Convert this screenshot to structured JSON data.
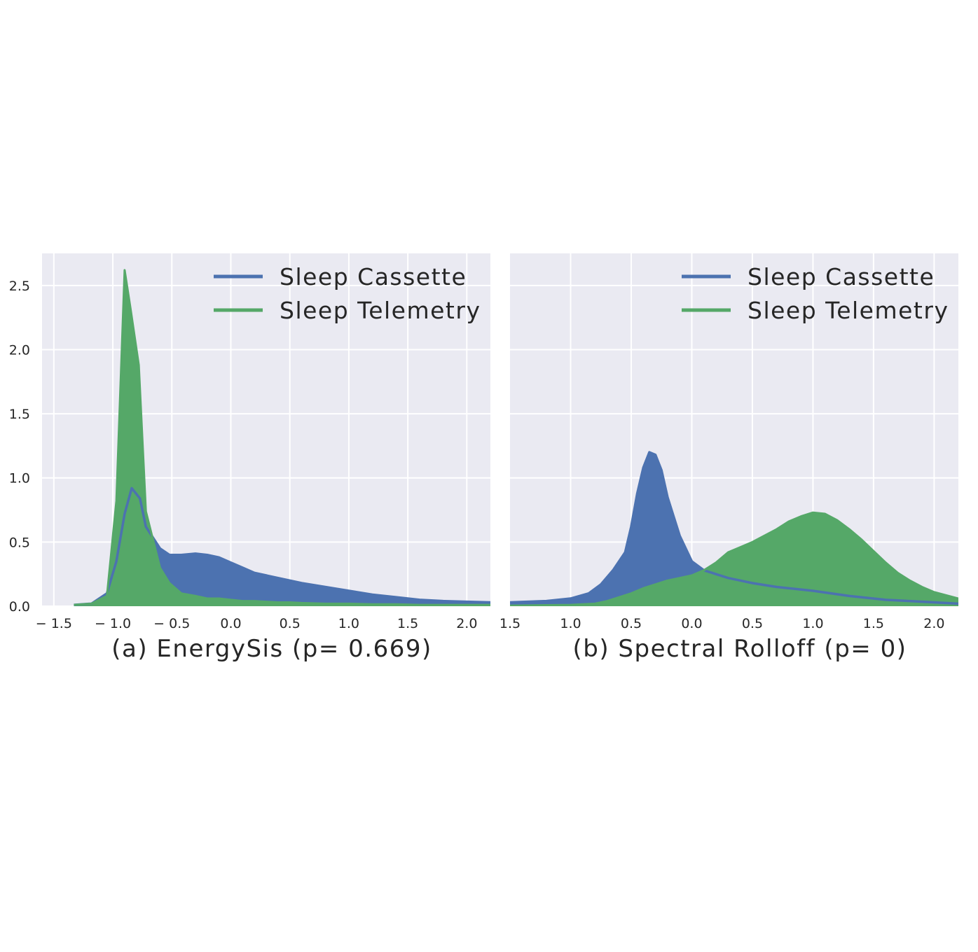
{
  "colors": {
    "cassette": "#4c72b0",
    "telemetry": "#55a868",
    "plot_bg": "#eaeaf2",
    "grid": "#ffffff"
  },
  "chart_data": [
    {
      "type": "area",
      "caption": "(a) EnergySis (p= 0.669)",
      "xlim": [
        -1.6,
        2.2
      ],
      "ylim": [
        0,
        2.75
      ],
      "xticks": [
        -1.5,
        -1.0,
        -0.5,
        0.0,
        0.5,
        1.0,
        1.5,
        2.0
      ],
      "xtick_labels": [
        "− 1.5",
        "− 1.0",
        "− 0.5",
        "0.0",
        "0.5",
        "1.0",
        "1.5",
        "2.0"
      ],
      "yticks": [
        0.0,
        0.5,
        1.0,
        1.5,
        2.0,
        2.5
      ],
      "ytick_labels": [
        "0.0",
        "0.5",
        "1.0",
        "1.5",
        "2.0",
        "2.5"
      ],
      "grid": true,
      "legend": "top-right",
      "series": [
        {
          "name": "Sleep Cassette",
          "color": "#4c72b0",
          "x": [
            -1.33,
            -1.18,
            -1.05,
            -0.97,
            -0.9,
            -0.84,
            -0.77,
            -0.72,
            -0.6,
            -0.52,
            -0.42,
            -0.3,
            -0.2,
            -0.1,
            0.0,
            0.1,
            0.2,
            0.3,
            0.4,
            0.5,
            0.6,
            0.8,
            1.0,
            1.2,
            1.4,
            1.6,
            1.8,
            2.0,
            2.2
          ],
          "y": [
            0.01,
            0.02,
            0.1,
            0.35,
            0.72,
            0.92,
            0.84,
            0.62,
            0.45,
            0.4,
            0.4,
            0.41,
            0.4,
            0.38,
            0.34,
            0.3,
            0.26,
            0.24,
            0.22,
            0.2,
            0.18,
            0.15,
            0.12,
            0.09,
            0.07,
            0.05,
            0.04,
            0.035,
            0.03
          ]
        },
        {
          "name": "Sleep Telemetry",
          "color": "#55a868",
          "x": [
            -1.33,
            -1.18,
            -1.05,
            -0.97,
            -0.9,
            -0.85,
            -0.78,
            -0.72,
            -0.6,
            -0.52,
            -0.42,
            -0.3,
            -0.2,
            -0.1,
            0.0,
            0.1,
            0.2,
            0.3,
            0.4,
            0.5,
            0.6,
            0.8,
            1.0,
            1.2,
            1.4,
            1.6,
            1.8,
            2.0,
            2.2
          ],
          "y": [
            0.01,
            0.02,
            0.08,
            0.82,
            2.62,
            2.32,
            1.88,
            0.74,
            0.3,
            0.18,
            0.1,
            0.08,
            0.06,
            0.06,
            0.05,
            0.04,
            0.04,
            0.035,
            0.03,
            0.03,
            0.025,
            0.02,
            0.02,
            0.015,
            0.015,
            0.01,
            0.01,
            0.01,
            0.01
          ]
        }
      ]
    },
    {
      "type": "area",
      "caption": "(b) Spectral Rolloff (p= 0)",
      "xlim": [
        -1.5,
        2.2
      ],
      "ylim": [
        0,
        2.75
      ],
      "xticks": [
        -1.5,
        -1.0,
        -0.5,
        0.0,
        0.5,
        1.0,
        1.5,
        2.0
      ],
      "xtick_labels": [
        "1.5",
        "1.0",
        "0.5",
        "0.0",
        "0.5",
        "1.0",
        "1.5",
        "2.0"
      ],
      "yticks": [
        0.0,
        0.5,
        1.0,
        1.5,
        2.0,
        2.5
      ],
      "grid": true,
      "legend": "top-right",
      "series": [
        {
          "name": "Sleep Cassette",
          "color": "#4c72b0",
          "x": [
            -1.5,
            -1.2,
            -1.0,
            -0.85,
            -0.75,
            -0.65,
            -0.55,
            -0.5,
            -0.45,
            -0.4,
            -0.35,
            -0.3,
            -0.25,
            -0.2,
            -0.1,
            0.0,
            0.1,
            0.2,
            0.3,
            0.4,
            0.5,
            0.7,
            1.0,
            1.3,
            1.6,
            2.0,
            2.2
          ],
          "y": [
            0.03,
            0.04,
            0.06,
            0.1,
            0.17,
            0.28,
            0.42,
            0.62,
            0.88,
            1.08,
            1.2,
            1.18,
            1.06,
            0.85,
            0.55,
            0.35,
            0.28,
            0.25,
            0.22,
            0.2,
            0.18,
            0.15,
            0.12,
            0.08,
            0.05,
            0.03,
            0.02
          ]
        },
        {
          "name": "Sleep Telemetry",
          "color": "#55a868",
          "x": [
            -1.5,
            -1.2,
            -1.0,
            -0.8,
            -0.7,
            -0.6,
            -0.5,
            -0.4,
            -0.3,
            -0.2,
            -0.1,
            0.0,
            0.1,
            0.2,
            0.3,
            0.4,
            0.5,
            0.6,
            0.7,
            0.8,
            0.9,
            1.0,
            1.1,
            1.2,
            1.3,
            1.4,
            1.5,
            1.6,
            1.7,
            1.8,
            1.9,
            2.0,
            2.2
          ],
          "y": [
            0.005,
            0.008,
            0.01,
            0.02,
            0.04,
            0.07,
            0.1,
            0.14,
            0.17,
            0.2,
            0.22,
            0.24,
            0.28,
            0.34,
            0.42,
            0.46,
            0.5,
            0.55,
            0.6,
            0.66,
            0.7,
            0.73,
            0.72,
            0.67,
            0.6,
            0.52,
            0.43,
            0.34,
            0.26,
            0.2,
            0.15,
            0.11,
            0.06
          ]
        }
      ]
    }
  ]
}
